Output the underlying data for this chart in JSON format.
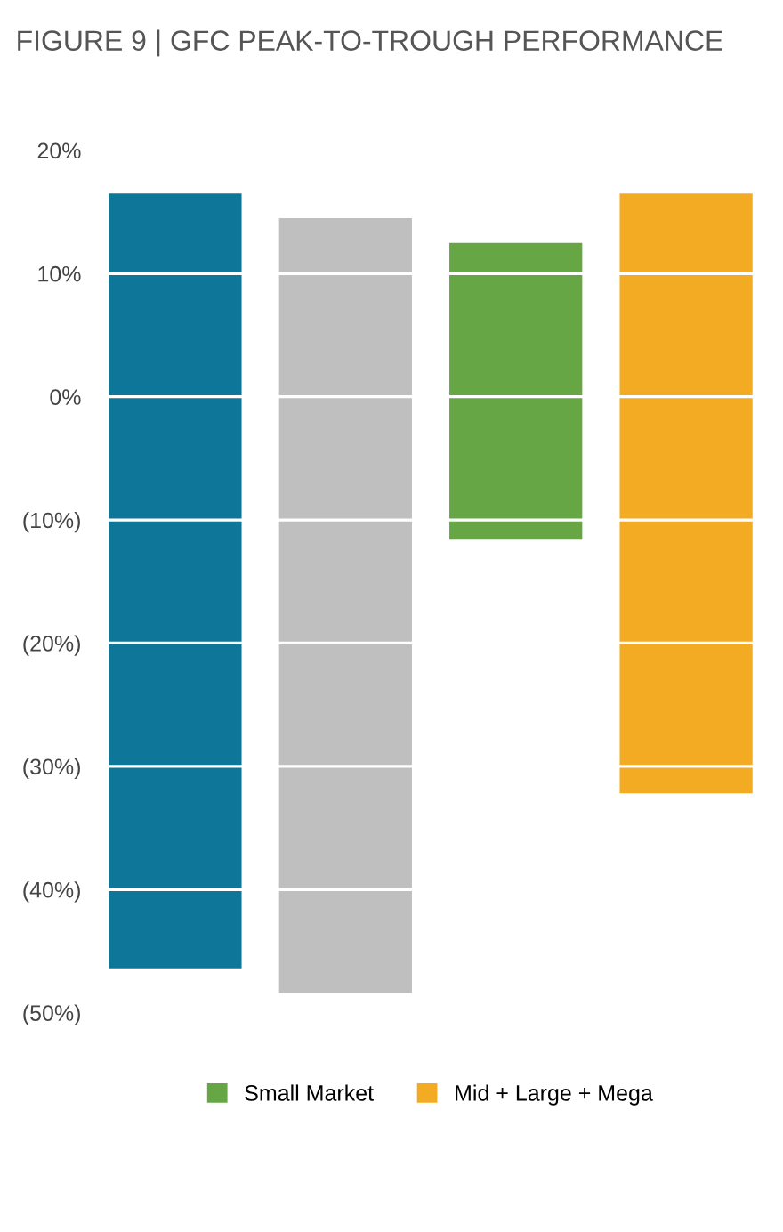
{
  "chart_data": {
    "type": "bar",
    "title": "FIGURE 9 | GFC PEAK-TO-TROUGH PERFORMANCE",
    "categories": [
      null,
      null,
      null,
      null
    ],
    "series": [
      {
        "color": "#0e7699",
        "values": [
          62.9,
          null,
          null,
          null
        ],
        "base": [
          -46.4,
          null,
          null,
          null
        ]
      },
      {
        "color": "#bfbfbf",
        "values": [
          null,
          62.9,
          null,
          null
        ],
        "base": [
          null,
          -48.4,
          null,
          null
        ]
      },
      {
        "name": "Small Market",
        "color": "#66a644",
        "values": [
          null,
          null,
          24.1,
          null
        ],
        "base": [
          null,
          null,
          -11.6,
          null
        ]
      },
      {
        "name": "Mid + Large + Mega",
        "color": "#f4ab24",
        "values": [
          null,
          null,
          null,
          48.7
        ],
        "base": [
          null,
          null,
          null,
          -32.2
        ]
      }
    ],
    "ylim": [
      -50,
      20
    ],
    "yticks": [
      {
        "value": 20,
        "label": "20%"
      },
      {
        "value": 10,
        "label": "10%"
      },
      {
        "value": 0,
        "label": "0%"
      },
      {
        "value": -10,
        "label": "(10%)"
      },
      {
        "value": -20,
        "label": "(20%)"
      },
      {
        "value": -30,
        "label": "(30%)"
      },
      {
        "value": -40,
        "label": "(40%)"
      },
      {
        "value": -50,
        "label": "(50%)"
      }
    ],
    "grid": "y",
    "legend": "bottom"
  }
}
